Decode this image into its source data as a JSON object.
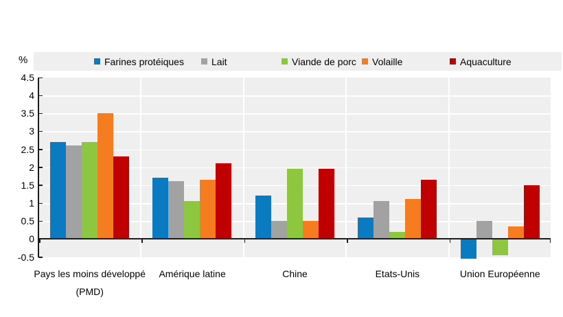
{
  "figure": {
    "unit_label": "%"
  },
  "chart_data": {
    "type": "bar",
    "title": "",
    "xlabel": "",
    "ylabel": "%",
    "ylim": [
      -0.5,
      4.5
    ],
    "ytick_step": 0.5,
    "ytick_labels": [
      "4.5",
      "4",
      "3.5",
      "3",
      "2.5",
      "2",
      "1.5",
      "1",
      "0.5",
      "0",
      "-0.5"
    ],
    "grid": true,
    "legend_position": "top",
    "plot_background": "#efefef",
    "axis_color": "#1a1a1a",
    "categories": [
      "Pays les moins développé (PMD)",
      "Amérique latine",
      "Chine",
      "Etats-Unis",
      "Union Européenne"
    ],
    "series": [
      {
        "name": "Farines protéiques",
        "color": "#0a7bc0",
        "values": [
          2.7,
          1.7,
          1.2,
          0.6,
          -0.55
        ]
      },
      {
        "name": "Lait",
        "color": "#a2a2a2",
        "values": [
          2.6,
          1.6,
          0.5,
          1.05,
          0.5
        ]
      },
      {
        "name": "Viande de porc",
        "color": "#8dc63f",
        "values": [
          2.7,
          1.05,
          1.95,
          0.2,
          -0.45
        ]
      },
      {
        "name": "Volaille",
        "color": "#f57d20",
        "values": [
          3.5,
          1.65,
          0.5,
          1.1,
          0.35
        ]
      },
      {
        "name": "Aquaculture",
        "color": "#c00000",
        "values": [
          2.3,
          2.1,
          1.95,
          1.65,
          1.5
        ]
      }
    ]
  }
}
